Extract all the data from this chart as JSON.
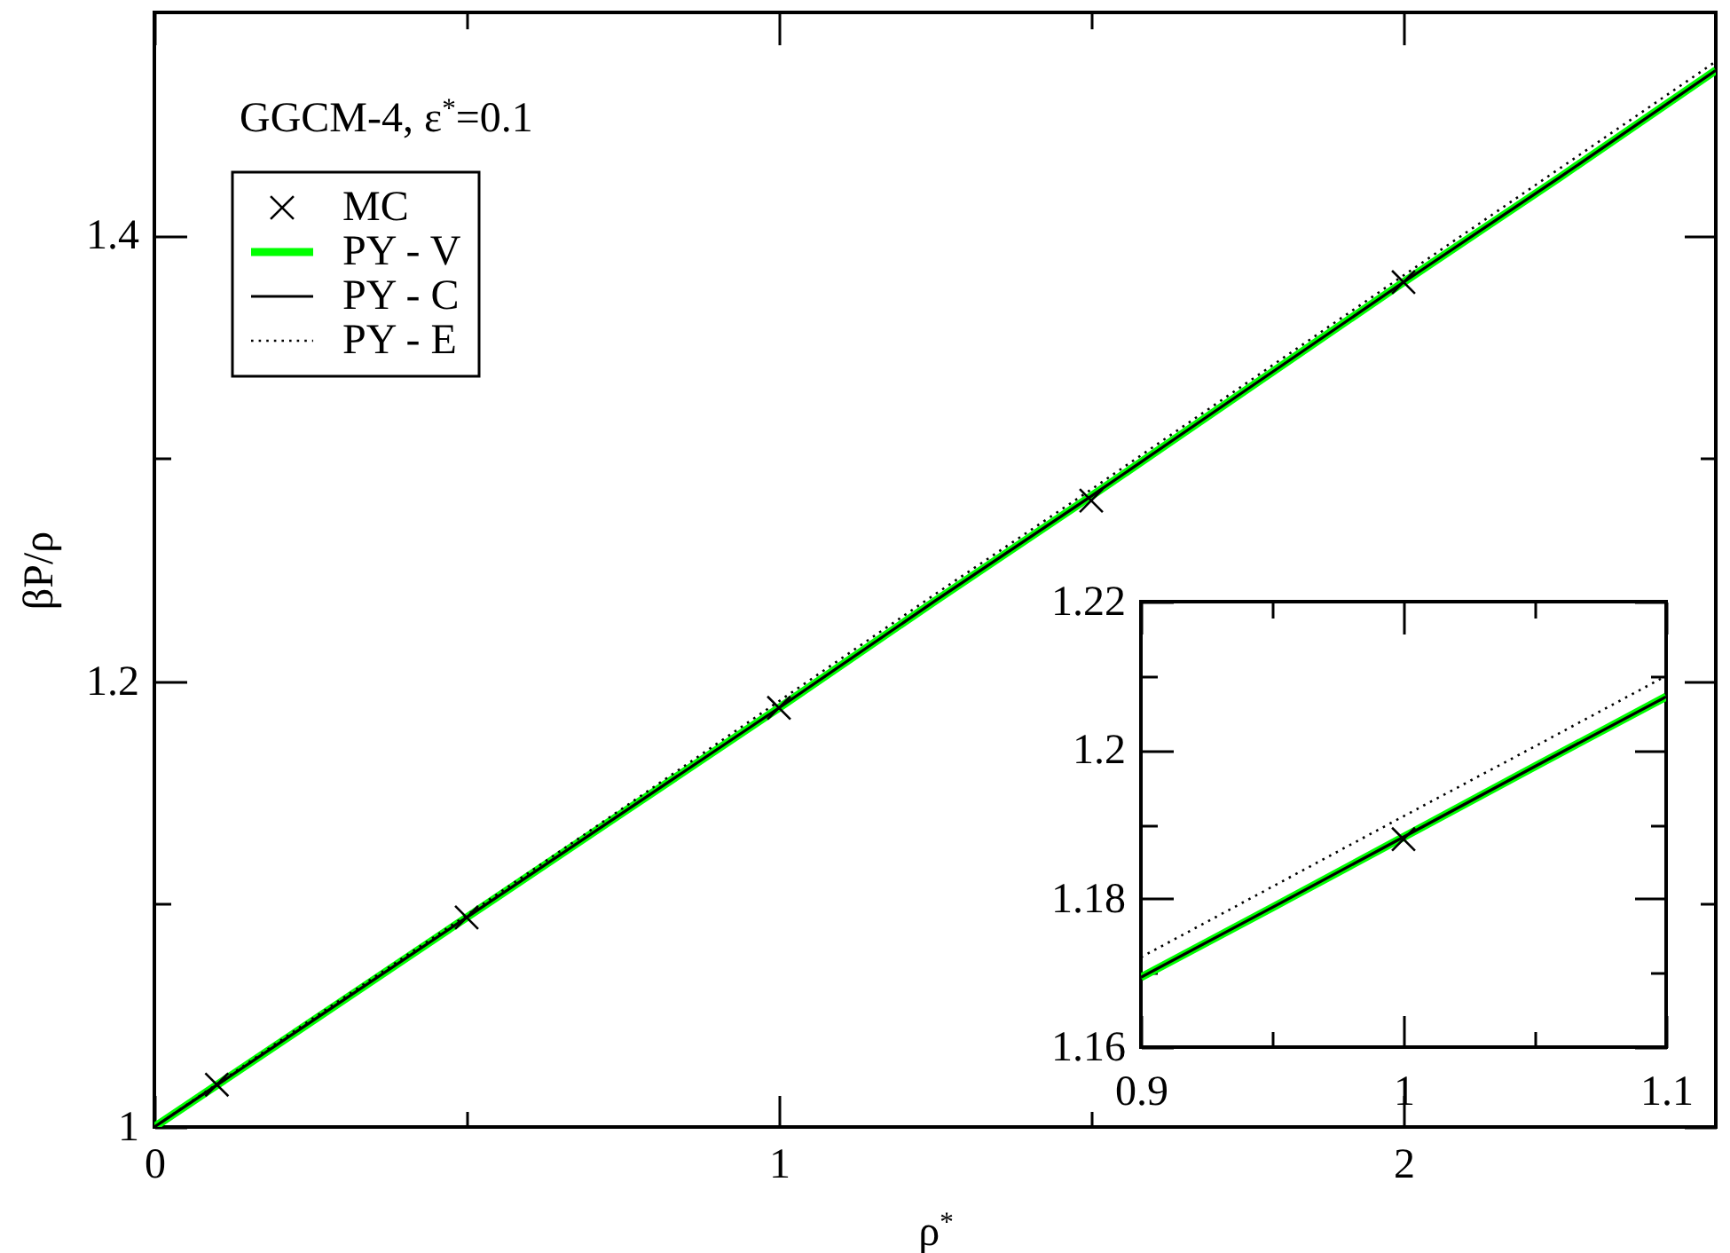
{
  "chart_data": [
    {
      "type": "line",
      "xlabel": "ρ$^{*}$",
      "ylabel": "βP/ρ",
      "annotations": [
        "GGCM-4, ε$^{*}$=0.1"
      ],
      "legend": "top left",
      "xlim": [
        0,
        2.5
      ],
      "ylim": [
        1,
        1.5
      ],
      "xticks": [
        0,
        {
          "value": 0.5,
          "label": null
        },
        1,
        {
          "value": 1.5,
          "label": null
        },
        2
      ],
      "yticks": [
        1,
        {
          "value": 1.1,
          "label": null
        },
        1.2,
        {
          "value": 1.3,
          "label": null
        },
        1.4
      ],
      "series": [
        {
          "name": "MC",
          "type": "scatter",
          "marker": "cross",
          "color": "#000000",
          "x": [
            0.1,
            0.5,
            1,
            1.5,
            2
          ],
          "values": [
            1.019,
            1.094,
            1.188,
            1.281,
            1.379
          ]
        },
        {
          "name": "PY - V",
          "color": "#00ff00",
          "line_style": "solid",
          "x": [
            0,
            0.25,
            0.5,
            0.75,
            1,
            1.25,
            1.5,
            1.75,
            2,
            2.25,
            2.5
          ],
          "values": [
            1,
            1.047,
            1.094,
            1.141,
            1.188,
            1.236,
            1.283,
            1.331,
            1.379,
            1.426,
            1.474
          ]
        },
        {
          "name": "PY - C",
          "color": "#000000",
          "line_style": "solid",
          "x": [
            0,
            0.25,
            0.5,
            0.75,
            1,
            1.25,
            1.5,
            1.75,
            2,
            2.25,
            2.5
          ],
          "values": [
            1,
            1.047,
            1.094,
            1.141,
            1.188,
            1.236,
            1.283,
            1.331,
            1.379,
            1.426,
            1.474
          ]
        },
        {
          "name": "PY - E",
          "color": "#000000",
          "line_style": "dotted",
          "x": [
            0,
            0.25,
            0.5,
            0.75,
            1,
            1.25,
            1.5,
            1.75,
            2,
            2.25,
            2.5
          ],
          "values": [
            1,
            1.048,
            1.095,
            1.143,
            1.191,
            1.239,
            1.286,
            1.334,
            1.382,
            1.43,
            1.478
          ]
        }
      ]
    },
    {
      "type": "line",
      "xlim": [
        0.9,
        1.1
      ],
      "ylim": [
        1.16,
        1.22
      ],
      "xticks": [
        0.9,
        {
          "value": 0.95,
          "label": null
        },
        1,
        {
          "value": 1.05,
          "label": null
        },
        1.1
      ],
      "yticks": [
        1.16,
        {
          "value": 1.17,
          "label": null
        },
        1.18,
        {
          "value": 1.19,
          "label": null
        },
        1.2,
        {
          "value": 1.21,
          "label": null
        },
        1.22
      ],
      "series": [
        {
          "type": "scatter",
          "marker": "cross",
          "color": "#000000",
          "x": [
            1
          ],
          "values": [
            1.188
          ]
        },
        {
          "color": "#00ff00",
          "line_style": "solid",
          "x": [
            0.9,
            0.95,
            1,
            1.05,
            1.1
          ],
          "values": [
            1.1694,
            1.1788,
            1.1883,
            1.1978,
            1.2072
          ]
        },
        {
          "color": "#000000",
          "line_style": "solid",
          "x": [
            0.9,
            0.95,
            1,
            1.05,
            1.1
          ],
          "values": [
            1.1694,
            1.1788,
            1.1883,
            1.1978,
            1.2072
          ]
        },
        {
          "color": "#000000",
          "line_style": "dotted",
          "x": [
            0.9,
            0.95,
            1,
            1.05,
            1.1
          ],
          "values": [
            1.1721,
            1.1816,
            1.1911,
            1.2005,
            1.21
          ]
        }
      ]
    }
  ]
}
